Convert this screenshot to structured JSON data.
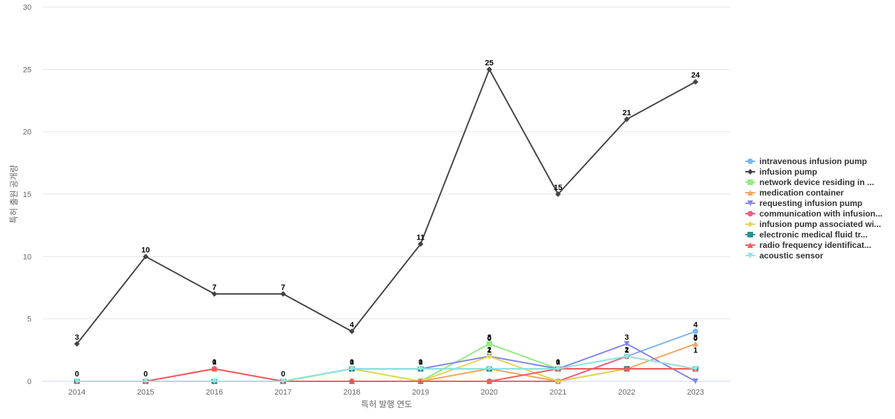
{
  "chart_data": {
    "type": "line",
    "title": "",
    "xlabel": "특허 발행 연도",
    "ylabel": "특허 출원 공개량",
    "x": [
      "2014",
      "2015",
      "2016",
      "2017",
      "2018",
      "2019",
      "2020",
      "2021",
      "2022",
      "2023"
    ],
    "ylim": [
      0,
      30
    ],
    "yticks": [
      0,
      5,
      10,
      15,
      20,
      25,
      30
    ],
    "grid": true,
    "legend_position": "right",
    "series": [
      {
        "name": "intravenous infusion pump",
        "color": "#7cb5ec",
        "marker": "circle",
        "values": [
          0,
          0,
          0,
          0,
          1,
          1,
          1,
          1,
          2,
          4
        ]
      },
      {
        "name": "infusion pump",
        "color": "#434348",
        "marker": "diamond",
        "values": [
          3,
          10,
          7,
          7,
          4,
          11,
          25,
          15,
          21,
          24
        ]
      },
      {
        "name": "network device residing in ...",
        "color": "#90ed7d",
        "marker": "square",
        "values": [
          0,
          0,
          0,
          0,
          1,
          0,
          3,
          1,
          1,
          1
        ]
      },
      {
        "name": "medication container",
        "color": "#f7a35c",
        "marker": "triangle",
        "values": [
          0,
          0,
          0,
          0,
          0,
          0,
          1,
          0,
          1,
          3
        ]
      },
      {
        "name": "requesting infusion pump",
        "color": "#8085e9",
        "marker": "triangle-down",
        "values": [
          0,
          0,
          0,
          0,
          1,
          1,
          2,
          1,
          3,
          0
        ]
      },
      {
        "name": "communication with infusion...",
        "color": "#f15c80",
        "marker": "circle",
        "values": [
          0,
          0,
          1,
          0,
          0,
          0,
          0,
          0,
          2,
          1
        ]
      },
      {
        "name": "infusion pump associated wi...",
        "color": "#e4d354",
        "marker": "diamond",
        "values": [
          0,
          0,
          0,
          0,
          1,
          0,
          2,
          0,
          1,
          1
        ]
      },
      {
        "name": "electronic medical fluid tr...",
        "color": "#2b908f",
        "marker": "square",
        "values": [
          0,
          0,
          0,
          0,
          1,
          1,
          1,
          1,
          1,
          1
        ]
      },
      {
        "name": "radio frequency identificat...",
        "color": "#f45b5b",
        "marker": "triangle",
        "values": [
          0,
          0,
          1,
          0,
          0,
          0,
          0,
          1,
          1,
          1
        ]
      },
      {
        "name": "acoustic sensor",
        "color": "#91e8e1",
        "marker": "triangle-down",
        "values": [
          0,
          0,
          0,
          0,
          1,
          1,
          1,
          1,
          2,
          1
        ]
      }
    ],
    "data_labels": [
      {
        "series": 1,
        "index": 0,
        "text": "3"
      },
      {
        "series": 1,
        "index": 1,
        "text": "10"
      },
      {
        "series": 1,
        "index": 2,
        "text": "7"
      },
      {
        "series": 1,
        "index": 3,
        "text": "7"
      },
      {
        "series": 1,
        "index": 4,
        "text": "4"
      },
      {
        "series": 1,
        "index": 5,
        "text": "11"
      },
      {
        "series": 1,
        "index": 6,
        "text": "25"
      },
      {
        "series": 1,
        "index": 7,
        "text": "15"
      },
      {
        "series": 1,
        "index": 8,
        "text": "21"
      },
      {
        "series": 1,
        "index": 9,
        "text": "24"
      },
      {
        "series": 0,
        "index": 0,
        "text": "0"
      },
      {
        "series": 0,
        "index": 1,
        "text": "0"
      },
      {
        "series": 5,
        "index": 2,
        "text": "1"
      },
      {
        "series": 0,
        "index": 2,
        "text": "0"
      },
      {
        "series": 0,
        "index": 3,
        "text": "0"
      },
      {
        "series": 0,
        "index": 4,
        "text": "1"
      },
      {
        "series": 5,
        "index": 4,
        "text": "0"
      },
      {
        "series": 0,
        "index": 5,
        "text": "1"
      },
      {
        "series": 5,
        "index": 5,
        "text": "0"
      },
      {
        "series": 2,
        "index": 6,
        "text": "3"
      },
      {
        "series": 4,
        "index": 6,
        "text": "2"
      },
      {
        "series": 0,
        "index": 6,
        "text": "1"
      },
      {
        "series": 5,
        "index": 6,
        "text": "0"
      },
      {
        "series": 0,
        "index": 7,
        "text": "1"
      },
      {
        "series": 3,
        "index": 7,
        "text": "0"
      },
      {
        "series": 4,
        "index": 8,
        "text": "3"
      },
      {
        "series": 0,
        "index": 8,
        "text": "2"
      },
      {
        "series": 8,
        "index": 8,
        "text": "1"
      },
      {
        "series": 0,
        "index": 9,
        "text": "4"
      },
      {
        "series": 3,
        "index": 9,
        "text": "3"
      },
      {
        "series": 7,
        "index": 9,
        "text": "1"
      },
      {
        "series": 4,
        "index": 9,
        "text": "0"
      }
    ]
  }
}
